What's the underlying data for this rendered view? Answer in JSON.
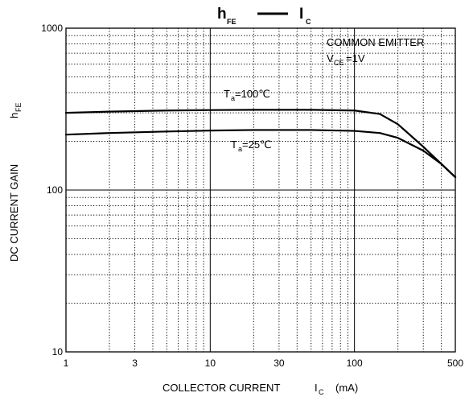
{
  "chart_data": {
    "type": "line",
    "title": {
      "left_main": "h",
      "left_sub": "FE",
      "right_main": "I",
      "right_sub": "C"
    },
    "xlabel": {
      "text": "COLLECTOR CURRENT",
      "symbol": "I",
      "symbol_sub": "C",
      "unit": "(mA)"
    },
    "ylabel": {
      "text": "DC CURRENT GAIN",
      "symbol": "h",
      "symbol_sub": "FE"
    },
    "x_scale": "log",
    "y_scale": "log",
    "xlim": [
      1,
      500
    ],
    "ylim": [
      10,
      1000
    ],
    "x_ticks": [
      {
        "value": 1,
        "label": "1"
      },
      {
        "value": 3,
        "label": "3"
      },
      {
        "value": 10,
        "label": "10"
      },
      {
        "value": 30,
        "label": "30"
      },
      {
        "value": 100,
        "label": "100"
      },
      {
        "value": 500,
        "label": "500"
      }
    ],
    "y_ticks": [
      {
        "value": 10,
        "label": "10"
      },
      {
        "value": 100,
        "label": "100"
      },
      {
        "value": 1000,
        "label": "1000"
      }
    ],
    "grid": true,
    "annotation": {
      "line1": "COMMON EMITTER",
      "line2_symbol": "V",
      "line2_sub": "CE",
      "line2_value": "=1V"
    },
    "series": [
      {
        "label_main": "T",
        "label_sub": "a",
        "label_value": "=100℃",
        "x": [
          1,
          2,
          5,
          10,
          20,
          50,
          100,
          150,
          200,
          300,
          400,
          500
        ],
        "y": [
          300,
          305,
          310,
          312,
          313,
          313,
          310,
          295,
          255,
          185,
          145,
          120
        ]
      },
      {
        "label_main": "T",
        "label_sub": "a",
        "label_value": "=25℃",
        "x": [
          1,
          2,
          5,
          10,
          20,
          50,
          100,
          150,
          200,
          300,
          400,
          500
        ],
        "y": [
          220,
          225,
          230,
          233,
          235,
          235,
          232,
          225,
          210,
          175,
          145,
          120
        ]
      }
    ]
  }
}
